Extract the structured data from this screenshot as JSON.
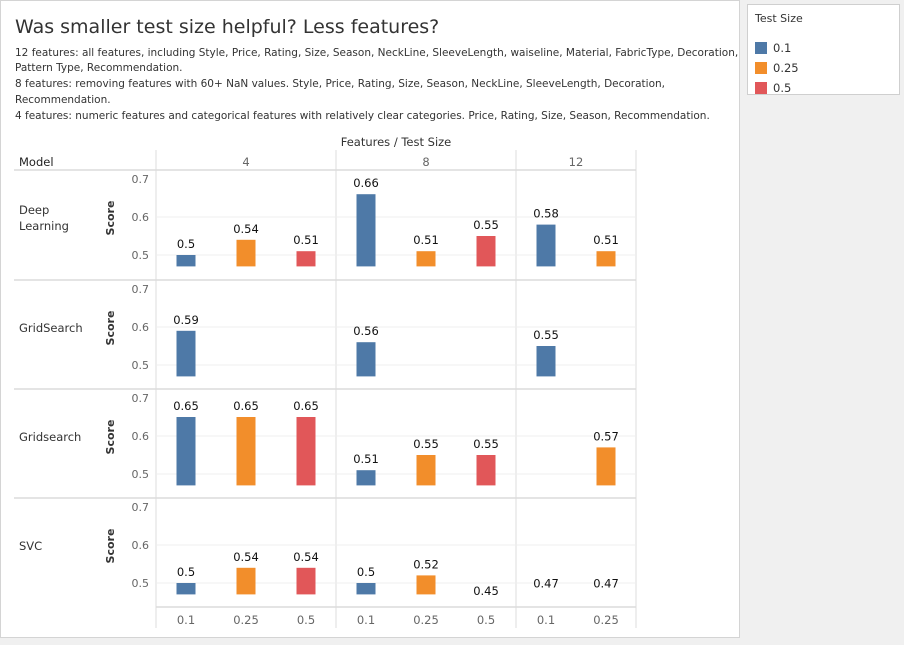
{
  "title": "Was smaller test size helpful? Less features?",
  "description_lines": [
    "12 features: all features, including Style, Price, Rating, Size, Season, NeckLine, SleeveLength, waiseline, Material, FabricType, Decoration,",
    "Pattern Type, Recommendation.",
    "8 features: removing features with 60+ NaN values. Style, Price, Rating, Size, Season, NeckLine, SleeveLength, Decoration,",
    "Recommendation.",
    "4 features: numeric features and categorical features with relatively clear categories. Price, Rating, Size, Season, Recommendation."
  ],
  "legend": {
    "title": "Test Size",
    "items": [
      {
        "label": "0.1",
        "color": "#4e79a7"
      },
      {
        "label": "0.25",
        "color": "#f28e2b"
      },
      {
        "label": "0.5",
        "color": "#e15759"
      }
    ]
  },
  "chart_data": {
    "type": "bar",
    "column_header": "Features / Test Size",
    "row_header": "Model",
    "ylabel": "Score",
    "yticks": [
      "0.5",
      "0.6",
      "0.7"
    ],
    "ylim": [
      0.47,
      0.7
    ],
    "features": [
      "4",
      "8",
      "12"
    ],
    "test_sizes": [
      "0.1",
      "0.25",
      "0.5"
    ],
    "rows": [
      {
        "model": "Deep\nLearning",
        "values": {
          "4": {
            "0.1": 0.5,
            "0.25": 0.54,
            "0.5": 0.51
          },
          "8": {
            "0.1": 0.66,
            "0.25": 0.51,
            "0.5": 0.55
          },
          "12": {
            "0.1": 0.58,
            "0.25": 0.51
          }
        }
      },
      {
        "model": "GridSearch",
        "values": {
          "4": {
            "0.1": 0.59
          },
          "8": {
            "0.1": 0.56
          },
          "12": {
            "0.1": 0.55
          }
        }
      },
      {
        "model": "Gridsearch",
        "values": {
          "4": {
            "0.1": 0.65,
            "0.25": 0.65,
            "0.5": 0.65
          },
          "8": {
            "0.1": 0.51,
            "0.25": 0.55,
            "0.5": 0.55
          },
          "12": {
            "0.25": 0.57
          }
        }
      },
      {
        "model": "SVC",
        "values": {
          "4": {
            "0.1": 0.5,
            "0.25": 0.54,
            "0.5": 0.54
          },
          "8": {
            "0.1": 0.5,
            "0.25": 0.52,
            "0.5": 0.45
          },
          "12": {
            "0.1": 0.47,
            "0.25": 0.47
          }
        }
      }
    ],
    "x_tick_labels": {
      "4": [
        "0.1",
        "0.25",
        "0.5"
      ],
      "8": [
        "0.1",
        "0.25",
        "0.5"
      ],
      "12": [
        "0.1",
        "0.25"
      ]
    }
  }
}
